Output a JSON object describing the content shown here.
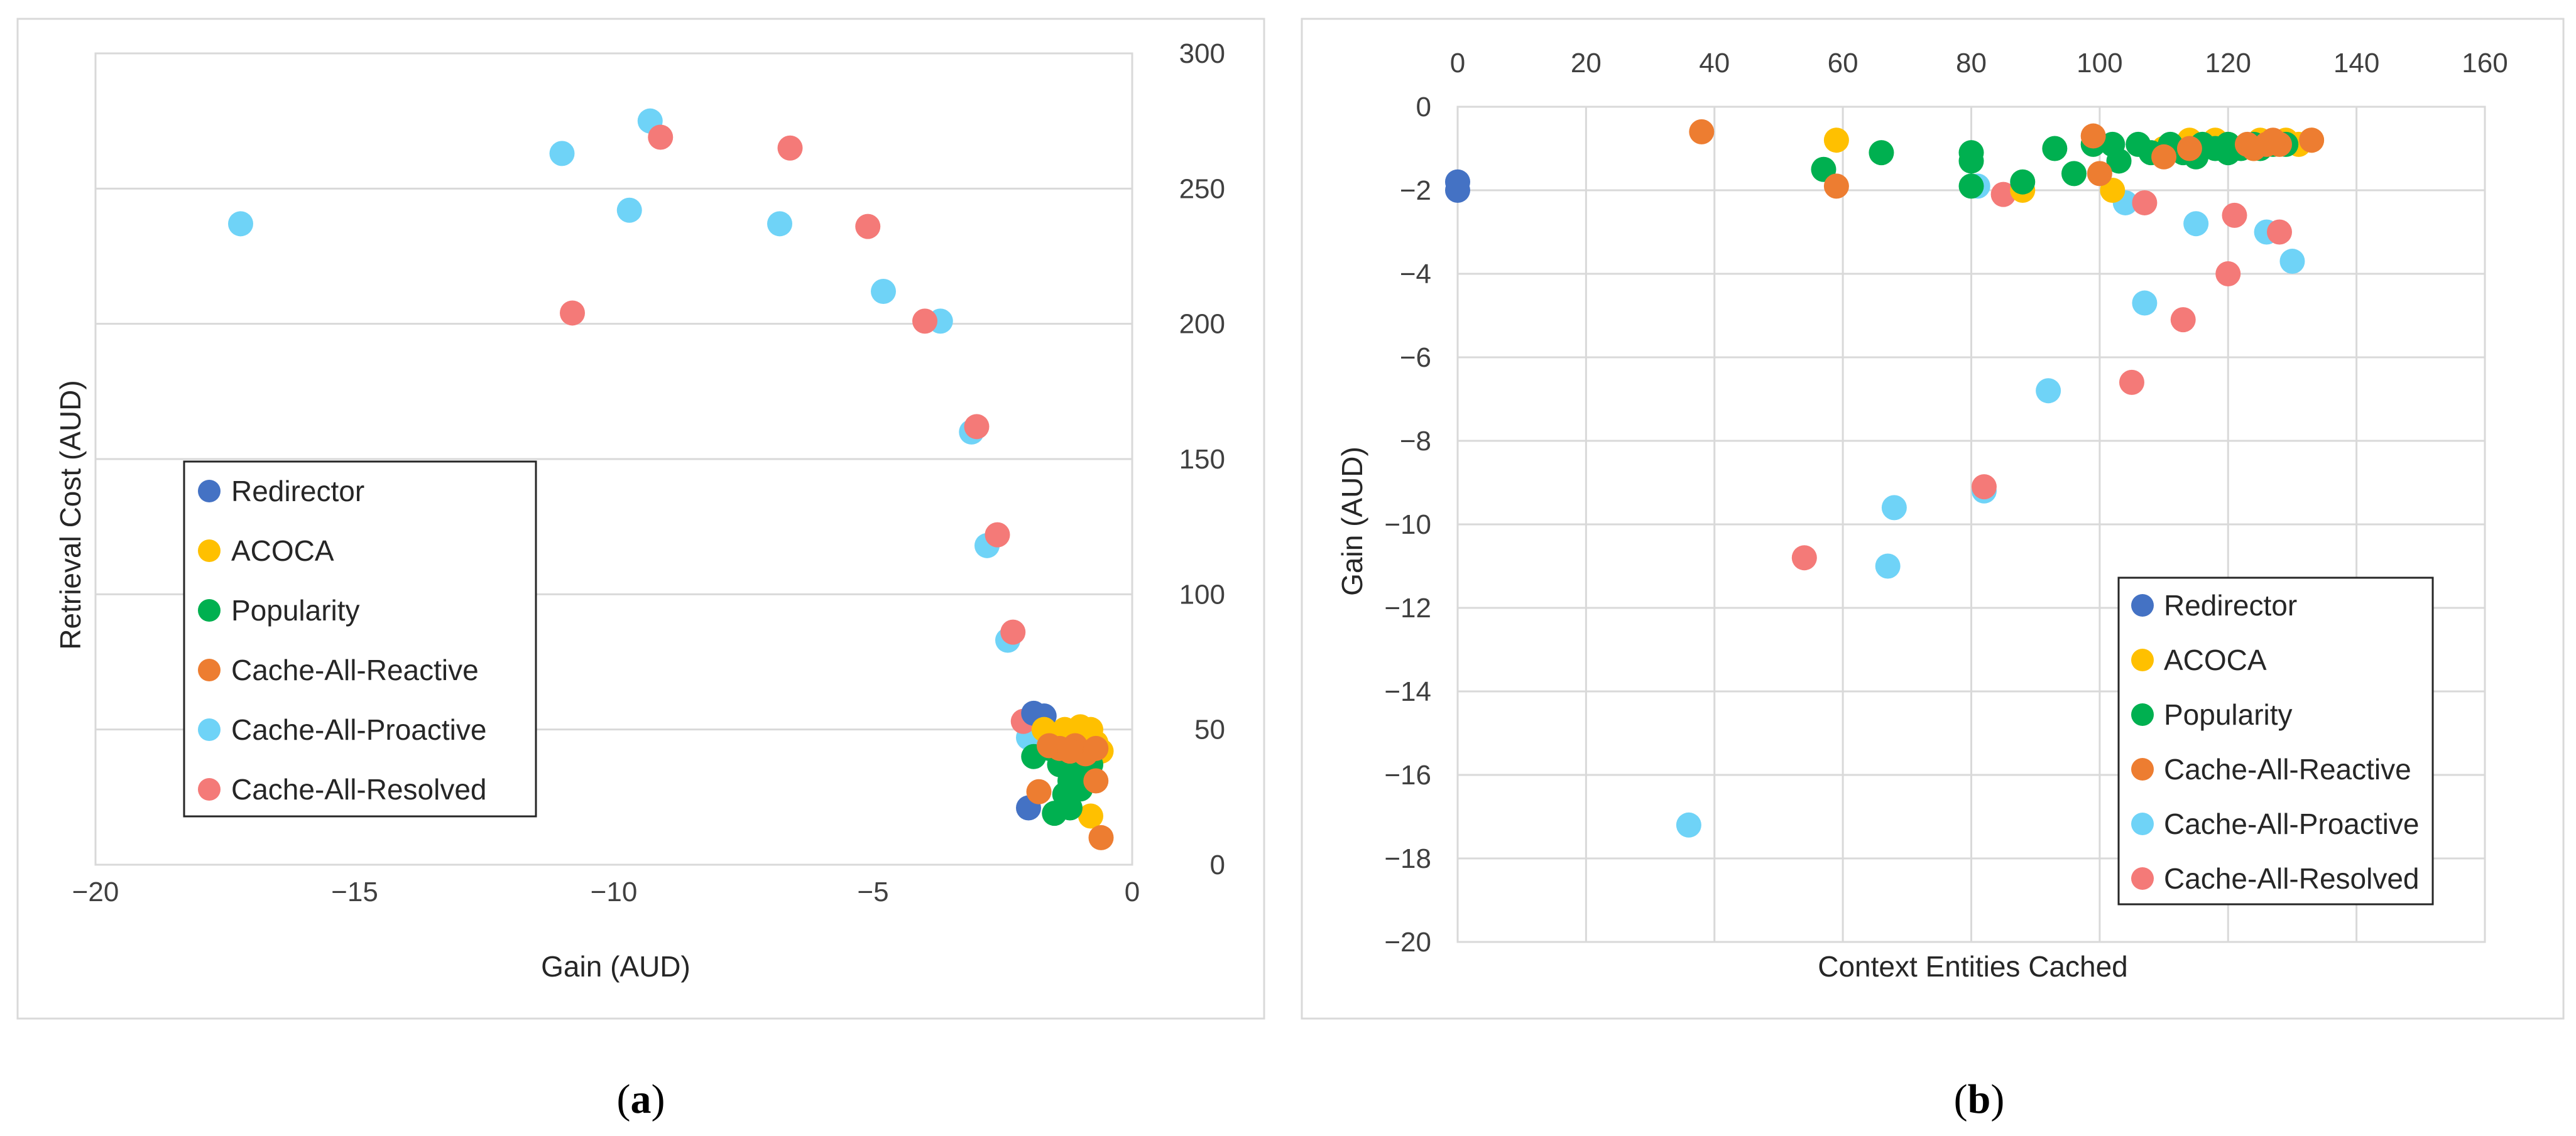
{
  "chart_data": [
    {
      "type": "scatter",
      "panel_label": "a",
      "title": "",
      "xlabel": "Gain (AUD)",
      "ylabel": "Retrieval Cost (AUD)",
      "xlim": [
        -20,
        0
      ],
      "ylim": [
        0,
        300
      ],
      "x_ticks": [
        -20,
        -15,
        -10,
        -5,
        0
      ],
      "y_ticks": [
        0,
        50,
        100,
        150,
        200,
        250,
        300
      ],
      "y_axis_side": "right",
      "grid": "horizontal",
      "legend_position": "middle-left",
      "series": [
        {
          "name": "Cache-All-Proactive",
          "color": "#6fd3f7",
          "points": [
            [
              -17.2,
              237
            ],
            [
              -11.0,
              263
            ],
            [
              -9.3,
              275
            ],
            [
              -9.7,
              242
            ],
            [
              -6.8,
              237
            ],
            [
              -4.8,
              212
            ],
            [
              -3.7,
              201
            ],
            [
              -3.1,
              160
            ],
            [
              -2.8,
              118
            ],
            [
              -2.4,
              83
            ],
            [
              -2.0,
              47
            ],
            [
              -1.9,
              50
            ]
          ]
        },
        {
          "name": "Cache-All-Resolved",
          "color": "#f47a78",
          "points": [
            [
              -10.8,
              204
            ],
            [
              -9.1,
              269
            ],
            [
              -6.6,
              265
            ],
            [
              -5.1,
              236
            ],
            [
              -4.0,
              201
            ],
            [
              -3.0,
              162
            ],
            [
              -2.6,
              122
            ],
            [
              -2.3,
              86
            ],
            [
              -2.1,
              53
            ]
          ]
        },
        {
          "name": "Redirector",
          "color": "#4472c4",
          "points": [
            [
              -1.9,
              56
            ],
            [
              -1.7,
              55
            ],
            [
              -2.0,
              21
            ]
          ]
        },
        {
          "name": "ACOCA",
          "color": "#ffc000",
          "points": [
            [
              -1.7,
              50
            ],
            [
              -1.3,
              50
            ],
            [
              -1.0,
              51
            ],
            [
              -0.8,
              50
            ],
            [
              -0.7,
              45
            ],
            [
              -0.6,
              42
            ],
            [
              -0.8,
              18
            ],
            [
              -1.5,
              44
            ]
          ]
        },
        {
          "name": "Popularity",
          "color": "#00b050",
          "points": [
            [
              -1.9,
              40
            ],
            [
              -1.6,
              43
            ],
            [
              -1.4,
              37
            ],
            [
              -1.3,
              26
            ],
            [
              -1.5,
              19
            ],
            [
              -1.2,
              21
            ],
            [
              -1.0,
              28
            ],
            [
              -1.1,
              41
            ],
            [
              -0.9,
              36
            ],
            [
              -0.8,
              37
            ],
            [
              -1.2,
              31
            ],
            [
              -1.3,
              38
            ]
          ]
        },
        {
          "name": "Cache-All-Reactive",
          "color": "#ed7d31",
          "points": [
            [
              -1.6,
              44
            ],
            [
              -1.4,
              43
            ],
            [
              -1.1,
              44
            ],
            [
              -0.9,
              41
            ],
            [
              -0.7,
              43
            ],
            [
              -0.7,
              31
            ],
            [
              -1.8,
              27
            ],
            [
              -0.6,
              10
            ],
            [
              -1.2,
              42
            ]
          ]
        }
      ]
    },
    {
      "type": "scatter",
      "panel_label": "b",
      "title": "",
      "xlabel": "Context Entities Cached",
      "ylabel": "Gain (AUD)",
      "xlim": [
        0,
        160
      ],
      "ylim": [
        -20,
        0
      ],
      "x_ticks": [
        0,
        20,
        40,
        60,
        80,
        100,
        120,
        140,
        160
      ],
      "y_ticks": [
        0,
        -2,
        -4,
        -6,
        -8,
        -10,
        -12,
        -14,
        -16,
        -18,
        -20
      ],
      "x_axis_side": "top",
      "grid": "both",
      "legend_position": "bottom-right",
      "series": [
        {
          "name": "Cache-All-Proactive",
          "color": "#6fd3f7",
          "points": [
            [
              36,
              -17.2
            ],
            [
              67,
              -11.0
            ],
            [
              68,
              -9.6
            ],
            [
              82,
              -9.2
            ],
            [
              92,
              -6.8
            ],
            [
              107,
              -4.7
            ],
            [
              115,
              -2.8
            ],
            [
              126,
              -3.0
            ],
            [
              130,
              -3.7
            ],
            [
              104,
              -2.3
            ],
            [
              81,
              -1.9
            ]
          ]
        },
        {
          "name": "Cache-All-Resolved",
          "color": "#f47a78",
          "points": [
            [
              54,
              -10.8
            ],
            [
              82,
              -9.1
            ],
            [
              105,
              -6.6
            ],
            [
              113,
              -5.1
            ],
            [
              120,
              -4.0
            ],
            [
              128,
              -3.0
            ],
            [
              121,
              -2.6
            ],
            [
              107,
              -2.3
            ],
            [
              85,
              -2.1
            ]
          ]
        },
        {
          "name": "Redirector",
          "color": "#4472c4",
          "points": [
            [
              0,
              -1.8
            ],
            [
              0,
              -2.0
            ]
          ]
        },
        {
          "name": "ACOCA",
          "color": "#ffc000",
          "points": [
            [
              59,
              -0.8
            ],
            [
              102,
              -2.0
            ],
            [
              88,
              -2.0
            ],
            [
              114,
              -0.8
            ],
            [
              120,
              -0.9
            ],
            [
              125,
              -0.8
            ],
            [
              129,
              -0.8
            ],
            [
              131,
              -0.9
            ],
            [
              133,
              -0.8
            ],
            [
              124,
              -1.0
            ],
            [
              118,
              -0.8
            ],
            [
              110,
              -1.0
            ]
          ]
        },
        {
          "name": "Popularity",
          "color": "#00b050",
          "points": [
            [
              57,
              -1.5
            ],
            [
              66,
              -1.1
            ],
            [
              80,
              -1.1
            ],
            [
              80,
              -1.3
            ],
            [
              80,
              -1.9
            ],
            [
              88,
              -1.8
            ],
            [
              93,
              -1.0
            ],
            [
              96,
              -1.6
            ],
            [
              99,
              -0.9
            ],
            [
              102,
              -0.9
            ],
            [
              103,
              -1.3
            ],
            [
              106,
              -0.9
            ],
            [
              108,
              -1.1
            ],
            [
              111,
              -0.9
            ],
            [
              113,
              -1.1
            ],
            [
              115,
              -1.2
            ],
            [
              116,
              -0.9
            ],
            [
              118,
              -1.0
            ],
            [
              120,
              -0.9
            ],
            [
              120,
              -1.1
            ],
            [
              122,
              -1.0
            ],
            [
              124,
              -0.9
            ],
            [
              125,
              -1.0
            ],
            [
              127,
              -0.9
            ],
            [
              129,
              -0.9
            ]
          ]
        },
        {
          "name": "Cache-All-Reactive",
          "color": "#ed7d31",
          "points": [
            [
              38,
              -0.6
            ],
            [
              59,
              -1.9
            ],
            [
              99,
              -0.7
            ],
            [
              100,
              -1.6
            ],
            [
              110,
              -1.2
            ],
            [
              114,
              -1.0
            ],
            [
              123,
              -0.9
            ],
            [
              124,
              -1.0
            ],
            [
              126,
              -0.9
            ],
            [
              128,
              -0.9
            ],
            [
              133,
              -0.8
            ],
            [
              127,
              -0.8
            ]
          ]
        }
      ]
    }
  ],
  "legend_order": [
    "Redirector",
    "ACOCA",
    "Popularity",
    "Cache-All-Reactive",
    "Cache-All-Proactive",
    "Cache-All-Resolved"
  ],
  "captions": {
    "a": {
      "open": "(",
      "letter": "a",
      "close": ")"
    },
    "b": {
      "open": "(",
      "letter": "b",
      "close": ")"
    }
  }
}
